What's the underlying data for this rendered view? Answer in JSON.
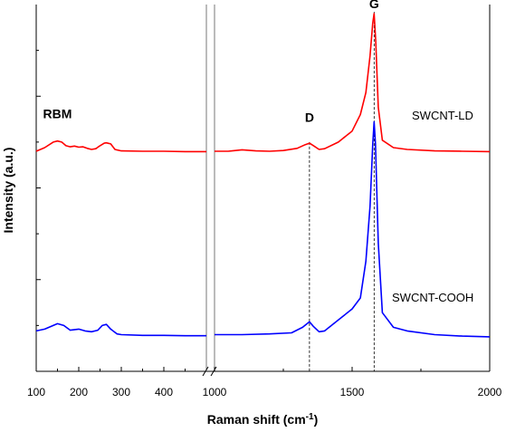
{
  "chart_data": {
    "type": "line",
    "title": "",
    "xlabel": "Raman shift (cm",
    "xlabel_sup": "-1",
    "xlabel_close": ")",
    "ylabel": "Intensity (a.u.)",
    "x_axis": {
      "broken": true,
      "segment_1": {
        "xlim": [
          100,
          500
        ],
        "ticks": [
          100,
          200,
          300,
          400
        ]
      },
      "segment_2": {
        "xlim": [
          1000,
          2000
        ],
        "ticks": [
          1000,
          1500,
          2000
        ]
      }
    },
    "ylim": [
      0,
      1
    ],
    "y_ticks_labeled": false,
    "grid": false,
    "series": [
      {
        "name": "SWCNT-LD",
        "color": "#ff0000",
        "points": [
          [
            100,
            0.6
          ],
          [
            120,
            0.61
          ],
          [
            140,
            0.625
          ],
          [
            150,
            0.628
          ],
          [
            160,
            0.625
          ],
          [
            170,
            0.615
          ],
          [
            180,
            0.612
          ],
          [
            190,
            0.614
          ],
          [
            200,
            0.611
          ],
          [
            210,
            0.612
          ],
          [
            220,
            0.608
          ],
          [
            230,
            0.605
          ],
          [
            240,
            0.607
          ],
          [
            250,
            0.615
          ],
          [
            260,
            0.622
          ],
          [
            265,
            0.623
          ],
          [
            275,
            0.62
          ],
          [
            285,
            0.605
          ],
          [
            300,
            0.601
          ],
          [
            350,
            0.6
          ],
          [
            400,
            0.6
          ],
          [
            450,
            0.599
          ],
          [
            500,
            0.599
          ],
          [
            1000,
            0.6
          ],
          [
            1050,
            0.6
          ],
          [
            1100,
            0.604
          ],
          [
            1150,
            0.601
          ],
          [
            1200,
            0.6
          ],
          [
            1250,
            0.602
          ],
          [
            1300,
            0.608
          ],
          [
            1330,
            0.618
          ],
          [
            1345,
            0.622
          ],
          [
            1360,
            0.615
          ],
          [
            1380,
            0.605
          ],
          [
            1400,
            0.607
          ],
          [
            1450,
            0.625
          ],
          [
            1500,
            0.655
          ],
          [
            1530,
            0.7
          ],
          [
            1550,
            0.76
          ],
          [
            1565,
            0.86
          ],
          [
            1575,
            0.95
          ],
          [
            1580,
            0.975
          ],
          [
            1586,
            0.9
          ],
          [
            1595,
            0.72
          ],
          [
            1610,
            0.63
          ],
          [
            1650,
            0.61
          ],
          [
            1700,
            0.605
          ],
          [
            1800,
            0.601
          ],
          [
            1900,
            0.6
          ],
          [
            2000,
            0.599
          ]
        ]
      },
      {
        "name": "SWCNT-COOH",
        "color": "#0000ff",
        "points": [
          [
            100,
            0.11
          ],
          [
            120,
            0.115
          ],
          [
            140,
            0.125
          ],
          [
            150,
            0.13
          ],
          [
            165,
            0.125
          ],
          [
            180,
            0.112
          ],
          [
            200,
            0.115
          ],
          [
            215,
            0.11
          ],
          [
            230,
            0.108
          ],
          [
            245,
            0.112
          ],
          [
            255,
            0.125
          ],
          [
            265,
            0.128
          ],
          [
            275,
            0.115
          ],
          [
            290,
            0.102
          ],
          [
            300,
            0.1
          ],
          [
            350,
            0.098
          ],
          [
            400,
            0.098
          ],
          [
            450,
            0.097
          ],
          [
            500,
            0.097
          ],
          [
            1000,
            0.1
          ],
          [
            1100,
            0.1
          ],
          [
            1200,
            0.102
          ],
          [
            1280,
            0.105
          ],
          [
            1320,
            0.12
          ],
          [
            1345,
            0.135
          ],
          [
            1360,
            0.122
          ],
          [
            1380,
            0.108
          ],
          [
            1400,
            0.11
          ],
          [
            1450,
            0.14
          ],
          [
            1500,
            0.17
          ],
          [
            1530,
            0.2
          ],
          [
            1550,
            0.3
          ],
          [
            1565,
            0.45
          ],
          [
            1575,
            0.62
          ],
          [
            1580,
            0.68
          ],
          [
            1585,
            0.62
          ],
          [
            1595,
            0.35
          ],
          [
            1610,
            0.16
          ],
          [
            1650,
            0.12
          ],
          [
            1700,
            0.11
          ],
          [
            1800,
            0.1
          ],
          [
            1900,
            0.096
          ],
          [
            2000,
            0.094
          ]
        ]
      }
    ],
    "reference_lines": [
      {
        "x": 1345,
        "style": "dashed"
      },
      {
        "x": 1580,
        "style": "dashed"
      }
    ],
    "annotations": [
      {
        "text": "RBM",
        "x": 150,
        "y": 0.69
      },
      {
        "text": "D",
        "x": 1345,
        "y": 0.68
      },
      {
        "text": "G",
        "x": 1580,
        "y": 0.99
      }
    ]
  }
}
